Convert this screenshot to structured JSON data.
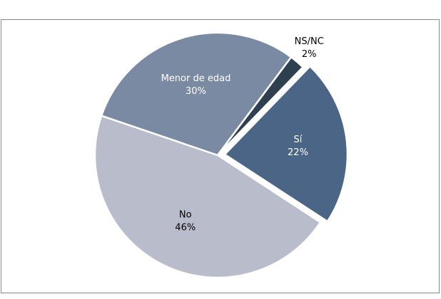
{
  "chart_data": {
    "type": "pie",
    "categories": [
      "Sí",
      "No",
      "Menor de edad",
      "NS/NC"
    ],
    "values": [
      22,
      46,
      30,
      2
    ],
    "value_labels": [
      "22%",
      "46%",
      "30%",
      "2%"
    ],
    "colors": [
      "#4a6585",
      "#b8bccb",
      "#7a8aa3",
      "#2e3f50"
    ],
    "exploded": [
      true,
      false,
      false,
      false
    ]
  }
}
